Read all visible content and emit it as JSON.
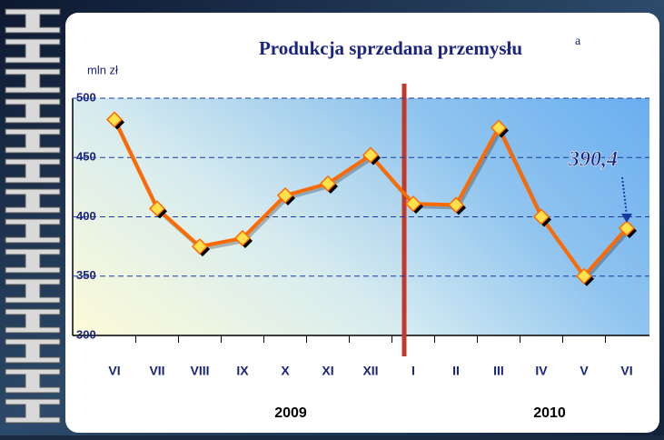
{
  "chart_data": {
    "type": "line",
    "title": "Produkcja sprzedana przemysłu",
    "title_superscript": "a",
    "y_label": "mln zł",
    "categories": [
      "VI",
      "VII",
      "VIII",
      "IX",
      "X",
      "XI",
      "XII",
      "I",
      "II",
      "III",
      "IV",
      "V",
      "VI"
    ],
    "groups": [
      "2009",
      "2010"
    ],
    "series": [
      {
        "name": "Produkcja sprzedana przemysłu",
        "color": "#ff6a00",
        "values": [
          482,
          407,
          375,
          382,
          418,
          428,
          452,
          411,
          410,
          475,
          400,
          350,
          390.4
        ]
      }
    ],
    "annotation": "390,4",
    "ylim": [
      300,
      500
    ],
    "yticks": [
      300,
      350,
      400,
      450,
      500
    ],
    "grid": true
  }
}
